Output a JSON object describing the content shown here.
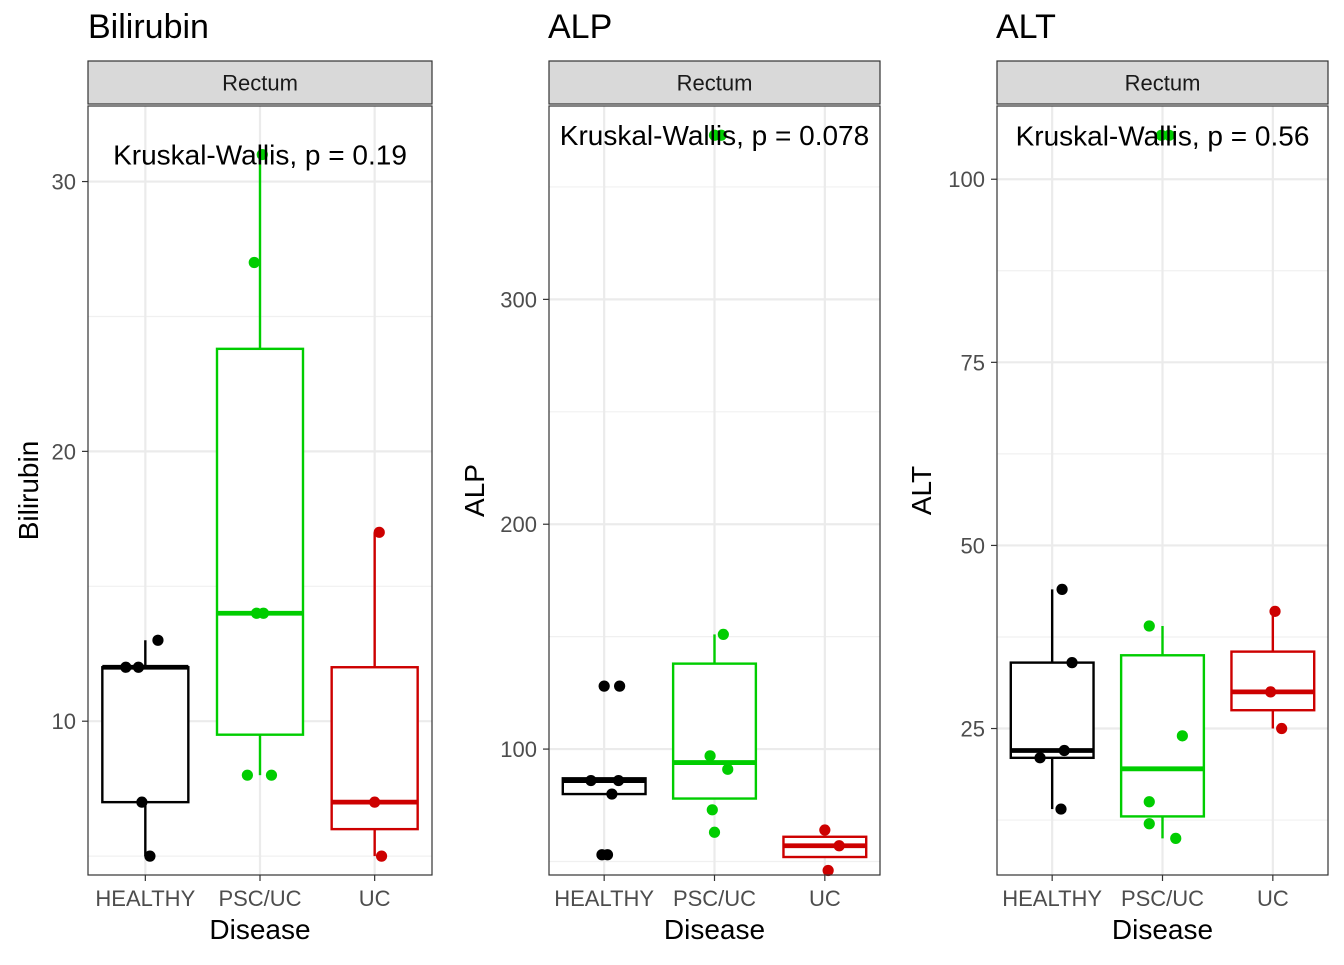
{
  "chart_data": [
    {
      "type": "boxplot",
      "title": "Bilirubin",
      "facet": "Rectum",
      "xlabel": "Disease",
      "ylabel": "Bilirubin",
      "categories": [
        "HEALTHY",
        "PSC/UC",
        "UC"
      ],
      "colors": [
        "#000000",
        "#00cd00",
        "#cd0000"
      ],
      "ylim": [
        4.3,
        32.8
      ],
      "yticks": [
        10,
        20,
        30
      ],
      "yticks_minor": [
        5,
        15,
        25
      ],
      "annotation": "Kruskal-Wallis, p = 0.19",
      "annotation_y": 31,
      "boxes": [
        {
          "q1": 7,
          "median": 12,
          "q3": 12,
          "whisker_low": 5,
          "whisker_high": 13
        },
        {
          "q1": 9.5,
          "median": 14,
          "q3": 23.8,
          "whisker_low": 8,
          "whisker_high": 31
        },
        {
          "q1": 6,
          "median": 7,
          "q3": 12,
          "whisker_low": 5,
          "whisker_high": 17
        }
      ],
      "points": [
        [
          {
            "x": -0.17,
            "y": 12
          },
          {
            "x": 0.11,
            "y": 13
          },
          {
            "x": -0.06,
            "y": 12
          },
          {
            "x": -0.03,
            "y": 7
          },
          {
            "x": 0.04,
            "y": 5
          }
        ],
        [
          {
            "x": 0.02,
            "y": 31
          },
          {
            "x": -0.05,
            "y": 27
          },
          {
            "x": -0.03,
            "y": 14
          },
          {
            "x": 0.03,
            "y": 14
          },
          {
            "x": -0.11,
            "y": 8
          },
          {
            "x": 0.1,
            "y": 8
          }
        ],
        [
          {
            "x": 0.04,
            "y": 17
          },
          {
            "x": 0.0,
            "y": 7
          },
          {
            "x": 0.06,
            "y": 5
          }
        ]
      ]
    },
    {
      "type": "boxplot",
      "title": "ALP",
      "facet": "Rectum",
      "xlabel": "Disease",
      "ylabel": "ALP",
      "categories": [
        "HEALTHY",
        "PSC/UC",
        "UC"
      ],
      "colors": [
        "#000000",
        "#00cd00",
        "#cd0000"
      ],
      "ylim": [
        44,
        386
      ],
      "yticks": [
        100,
        200,
        300
      ],
      "yticks_minor": [
        50,
        150,
        250,
        350
      ],
      "annotation": "Kruskal-Wallis, p = 0.078",
      "annotation_y": 373,
      "boxes": [
        {
          "q1": 80,
          "median": 86,
          "q3": 87,
          "whisker_low": 80,
          "whisker_high": 87
        },
        {
          "q1": 78,
          "median": 94,
          "q3": 138,
          "whisker_low": 78,
          "whisker_high": 151
        },
        {
          "q1": 52,
          "median": 57,
          "q3": 61,
          "whisker_low": 52,
          "whisker_high": 61
        }
      ],
      "points": [
        [
          {
            "x": 0.0,
            "y": 128
          },
          {
            "x": 0.14,
            "y": 128
          },
          {
            "x": -0.12,
            "y": 86
          },
          {
            "x": 0.13,
            "y": 86
          },
          {
            "x": 0.07,
            "y": 80
          },
          {
            "x": -0.02,
            "y": 53
          },
          {
            "x": 0.03,
            "y": 53
          }
        ],
        [
          {
            "x": 0.0,
            "y": 373
          },
          {
            "x": 0.06,
            "y": 373
          },
          {
            "x": 0.08,
            "y": 151
          },
          {
            "x": -0.04,
            "y": 97
          },
          {
            "x": 0.12,
            "y": 91
          },
          {
            "x": -0.02,
            "y": 73
          },
          {
            "x": 0.0,
            "y": 63
          }
        ],
        [
          {
            "x": 0.0,
            "y": 64
          },
          {
            "x": 0.13,
            "y": 57
          },
          {
            "x": 0.03,
            "y": 46
          }
        ]
      ]
    },
    {
      "type": "boxplot",
      "title": "ALT",
      "facet": "Rectum",
      "xlabel": "Disease",
      "ylabel": "ALT",
      "categories": [
        "HEALTHY",
        "PSC/UC",
        "UC"
      ],
      "colors": [
        "#000000",
        "#00cd00",
        "#cd0000"
      ],
      "ylim": [
        5,
        110
      ],
      "yticks": [
        25,
        50,
        75,
        100
      ],
      "yticks_minor": [
        12.5,
        37.5,
        62.5,
        87.5
      ],
      "annotation": "Kruskal-Wallis, p = 0.56",
      "annotation_y": 106,
      "boxes": [
        {
          "q1": 21,
          "median": 22,
          "q3": 34,
          "whisker_low": 14,
          "whisker_high": 44
        },
        {
          "q1": 13,
          "median": 19.5,
          "q3": 35,
          "whisker_low": 10,
          "whisker_high": 39
        },
        {
          "q1": 27.5,
          "median": 30,
          "q3": 35.5,
          "whisker_low": 25,
          "whisker_high": 41
        }
      ],
      "points": [
        [
          {
            "x": 0.09,
            "y": 44
          },
          {
            "x": 0.18,
            "y": 34
          },
          {
            "x": 0.11,
            "y": 22
          },
          {
            "x": -0.11,
            "y": 21
          },
          {
            "x": 0.08,
            "y": 14
          }
        ],
        [
          {
            "x": -0.01,
            "y": 106
          },
          {
            "x": 0.06,
            "y": 106
          },
          {
            "x": -0.12,
            "y": 39
          },
          {
            "x": 0.18,
            "y": 24
          },
          {
            "x": -0.12,
            "y": 15
          },
          {
            "x": -0.12,
            "y": 12
          },
          {
            "x": 0.12,
            "y": 10
          }
        ],
        [
          {
            "x": 0.02,
            "y": 41
          },
          {
            "x": -0.02,
            "y": 30
          },
          {
            "x": 0.08,
            "y": 25
          }
        ]
      ]
    }
  ]
}
